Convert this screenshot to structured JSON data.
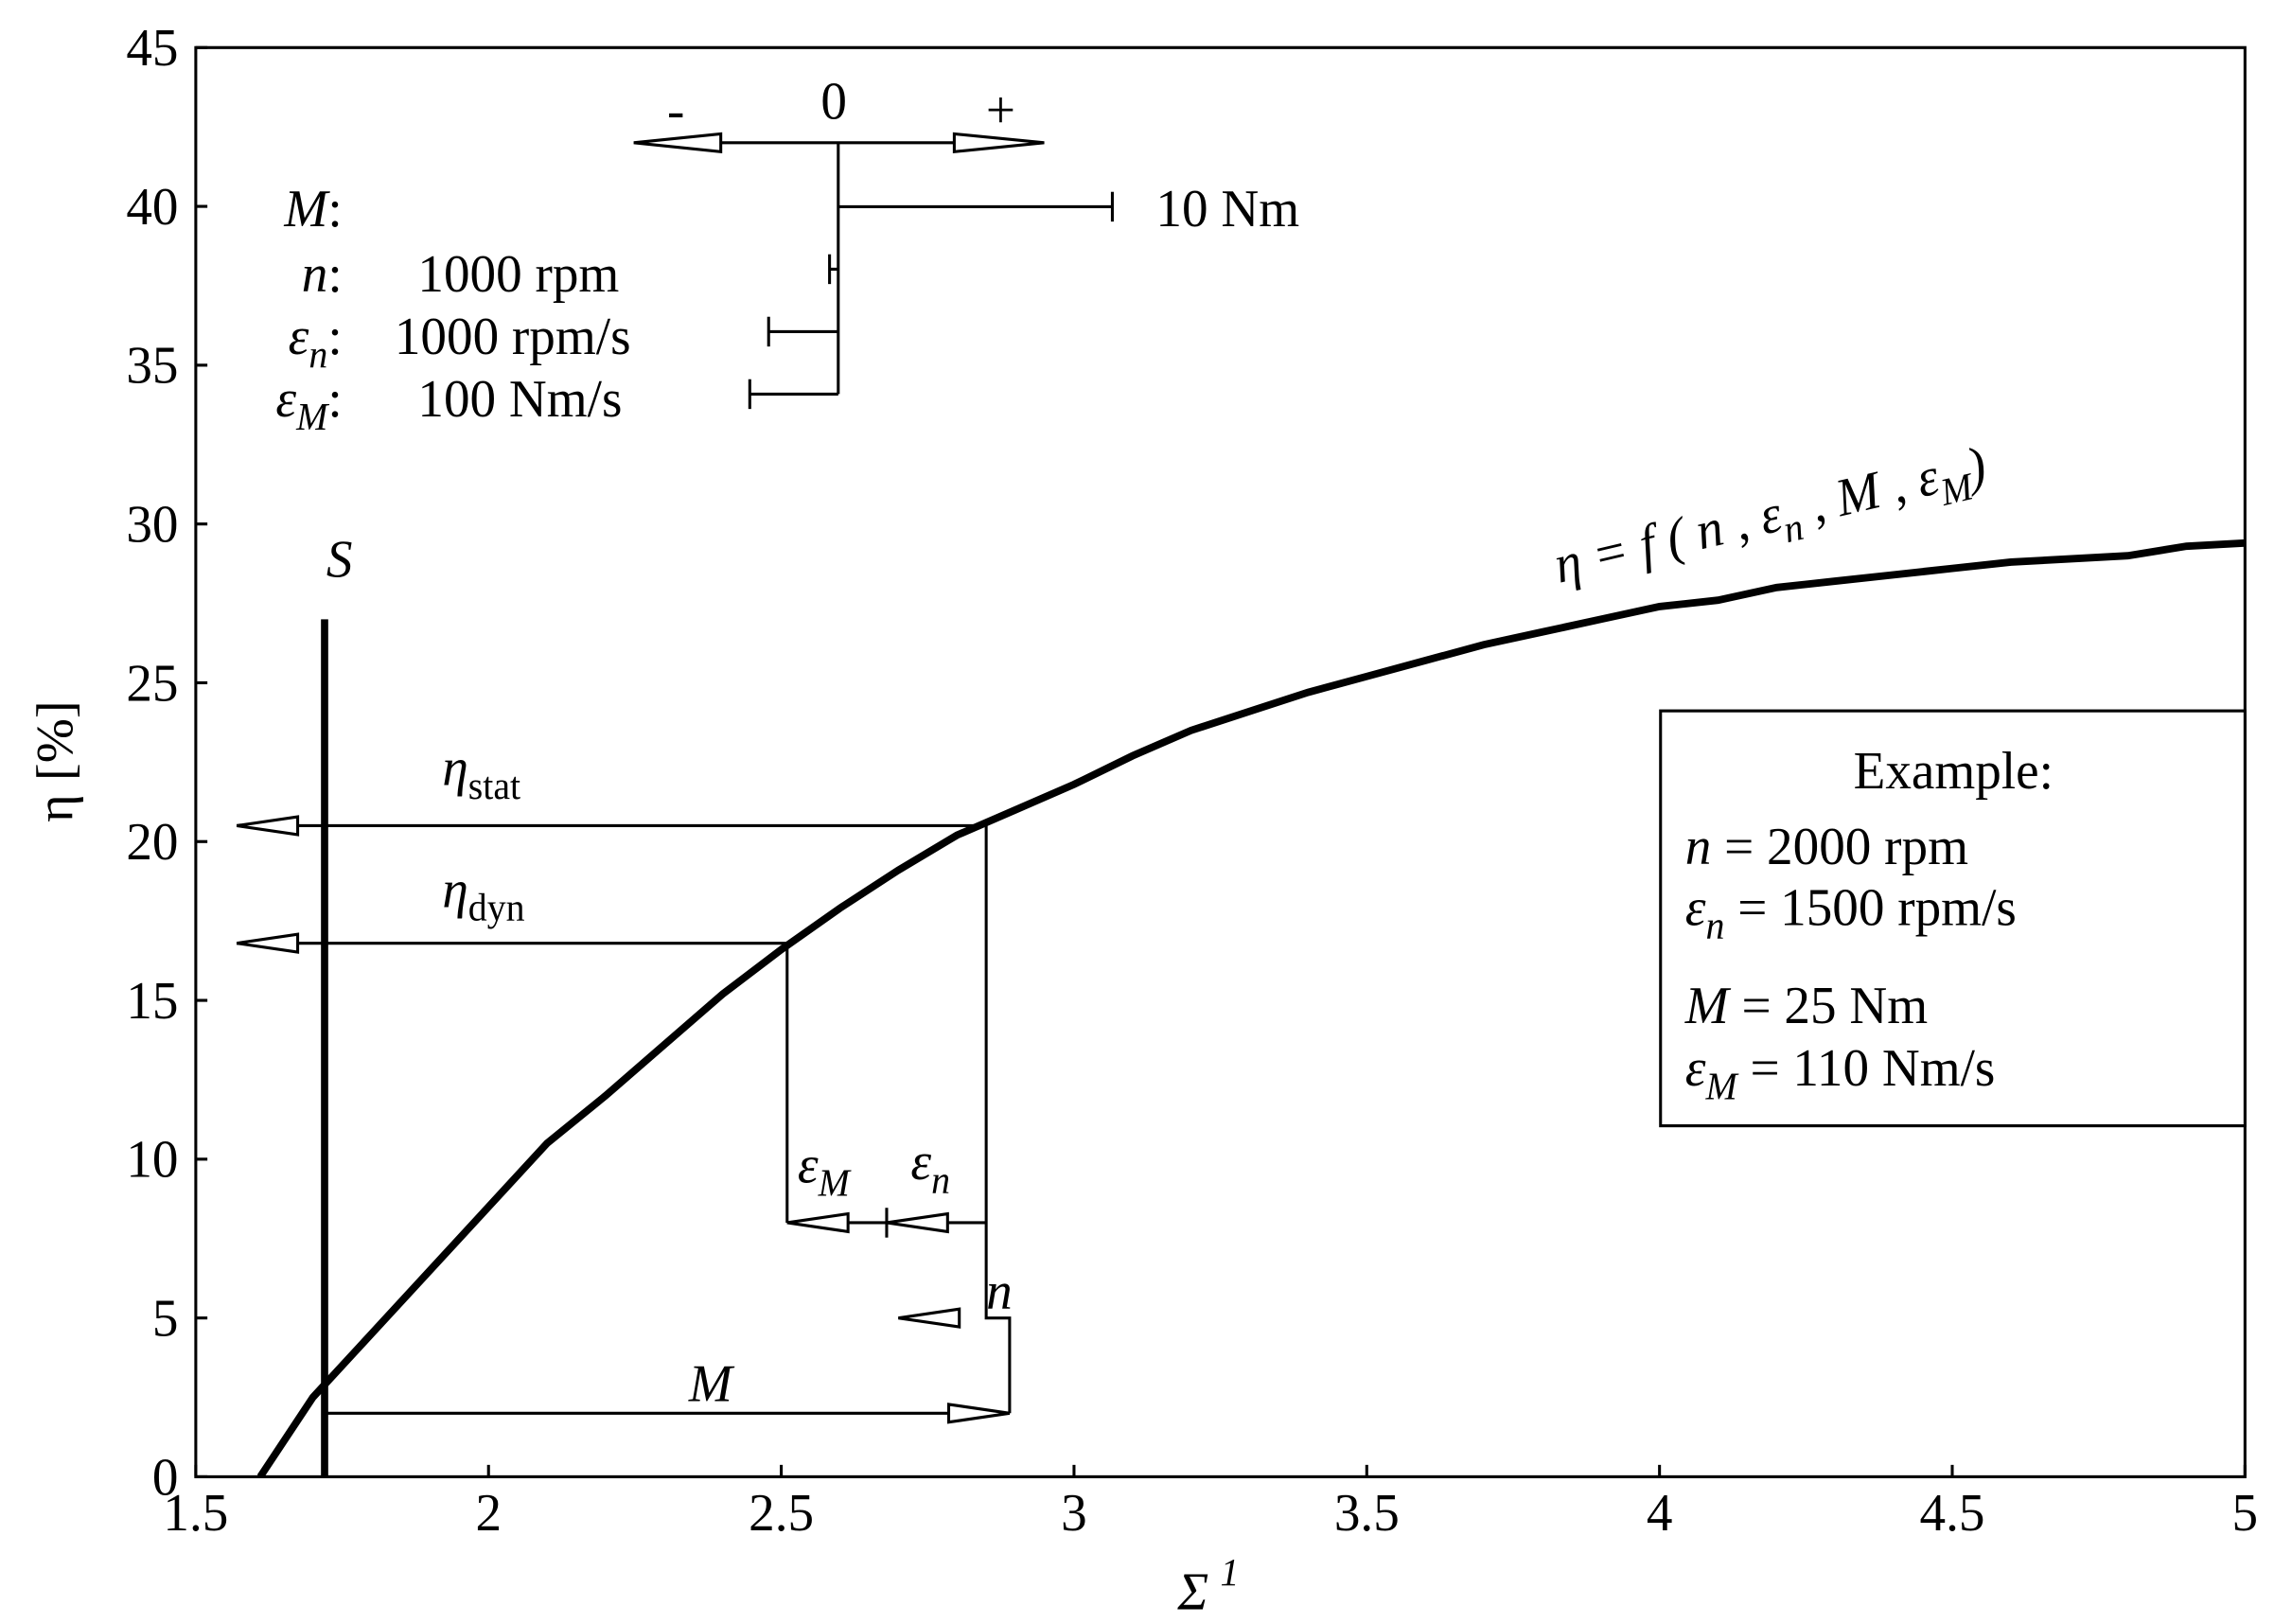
{
  "chart_data": {
    "type": "line",
    "x_label": "Σ",
    "x_label_superscript": "1",
    "y_label": "η [%]",
    "xlim": [
      1.5,
      5
    ],
    "xticks": [
      1.5,
      2,
      2.5,
      3,
      3.5,
      4,
      4.5,
      5
    ],
    "ylim": [
      0,
      45
    ],
    "yticks": [
      0,
      5,
      10,
      15,
      20,
      25,
      30,
      35,
      40,
      45
    ],
    "color": "#000000",
    "x": [
      1.61,
      1.7,
      1.8,
      1.9,
      2.0,
      2.1,
      2.2,
      2.3,
      2.4,
      2.5,
      2.6,
      2.7,
      2.8,
      2.9,
      3.0,
      3.1,
      3.2,
      3.3,
      3.4,
      3.5,
      3.6,
      3.7,
      3.8,
      3.9,
      4.0,
      4.1,
      4.2,
      4.3,
      4.4,
      4.5,
      4.6,
      4.7,
      4.8,
      4.9,
      5.0
    ],
    "values": [
      0,
      2.5,
      4.5,
      6.5,
      8.5,
      10.5,
      12,
      13.6,
      15.2,
      16.6,
      17.9,
      19.1,
      20.2,
      21,
      21.8,
      22.7,
      23.5,
      24.1,
      24.7,
      25.2,
      25.7,
      26.2,
      26.6,
      27,
      27.4,
      27.6,
      28,
      28.2,
      28.4,
      28.6,
      28.8,
      28.9,
      29.0,
      29.3,
      29.4
    ],
    "curve_label": [
      {
        "text": "η = f ( n , ε"
      },
      {
        "sub": "n"
      },
      {
        "text": " , M , ε"
      },
      {
        "sub": "M"
      },
      {
        "text": ")"
      }
    ],
    "annotations": [
      {
        "label": {
          "text": "S"
        },
        "x": [
          1.72,
          1.72
        ],
        "y": [
          0,
          27
        ],
        "thick": true
      },
      {
        "label": {
          "text": "η",
          "sub": "stat"
        },
        "x": [
          2.85,
          1.57
        ],
        "y": [
          20.5,
          20.5
        ],
        "arrow": true
      },
      {
        "label": {
          "text": "η",
          "sub": "dyn"
        },
        "x": [
          2.51,
          1.57
        ],
        "y": [
          16.8,
          16.8
        ],
        "arrow": true
      },
      {
        "label": {
          "text": "M"
        },
        "x": [
          1.72,
          2.89
        ],
        "y": [
          2,
          2
        ],
        "arrow": true
      },
      {
        "label": {
          "text": "n"
        },
        "x": [
          2.89,
          2.89,
          2.85,
          2.85
        ],
        "y": [
          2,
          5,
          5,
          20.5
        ]
      },
      {
        "x": [
          2.8,
          2.7
        ],
        "y": [
          5,
          5
        ],
        "arrow": true,
        "arrow_only": true
      },
      {
        "label": {
          "text": "ε",
          "sub": "n"
        },
        "x": [
          2.85,
          2.68
        ],
        "y": [
          8,
          8
        ],
        "arrow": true
      },
      {
        "label": {
          "text": "ε",
          "sub": "M"
        },
        "x": [
          2.68,
          2.51
        ],
        "y": [
          8,
          8
        ],
        "arrow": true
      },
      {
        "x": [
          2.51,
          2.51
        ],
        "y": [
          8,
          16.8
        ]
      }
    ]
  },
  "scale_key": {
    "zero": "0",
    "minus": "-",
    "plus": "+",
    "rows": [
      {
        "symbol": "M",
        "suffix": ":",
        "value": "10 Nm"
      },
      {
        "symbol": "n",
        "suffix": ":",
        "value": "1000 rpm"
      },
      {
        "symbol": "ε",
        "sub": "n",
        "suffix": ":",
        "value": "1000 rpm/s"
      },
      {
        "symbol": "ε",
        "sub": "M",
        "suffix": ":",
        "value": "100 Nm/s"
      }
    ]
  },
  "example": {
    "title": "Example:",
    "lines": [
      {
        "symbol": "n",
        "text": " =  2000 rpm"
      },
      {
        "symbol": "ε",
        "sub": "n",
        "text": " = 1500 rpm/s"
      },
      {
        "symbol": "M",
        "text": " =  25 Nm"
      },
      {
        "symbol": "ε",
        "sub": "M",
        "text": " = 110 Nm/s"
      }
    ]
  }
}
